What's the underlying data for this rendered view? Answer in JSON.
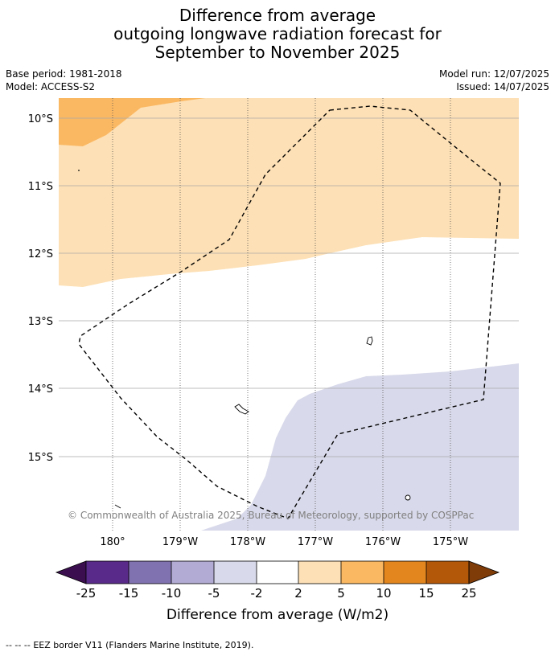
{
  "title": {
    "line1": "Difference from average",
    "line2": "outgoing longwave radiation forecast for",
    "line3": "September to November 2025"
  },
  "meta": {
    "base_period": "Base period: 1981-2018",
    "model": "Model: ACCESS-S2",
    "model_run": "Model run: 12/07/2025",
    "issued": "Issued: 14/07/2025"
  },
  "map": {
    "lat_labels": [
      "10°S",
      "11°S",
      "12°S",
      "13°S",
      "14°S",
      "15°S"
    ],
    "lon_labels": [
      "180°",
      "179°W",
      "178°W",
      "177°W",
      "176°W",
      "175°W"
    ],
    "credit": "© Commonwealth of Australia 2025, Bureau of Meteorology, supported by COSPPac"
  },
  "colorbar": {
    "ticks": [
      "-25",
      "-15",
      "-10",
      "-5",
      "-2",
      "2",
      "5",
      "10",
      "15",
      "25"
    ],
    "colors": {
      "under": "#3b0f4f",
      "b1": "#5a2a8a",
      "b2": "#8072b0",
      "b3": "#b2acd4",
      "b4": "#d8d9ea",
      "b5": "#ffffff",
      "b6": "#fde0b5",
      "b7": "#fbb862",
      "b8": "#e3861e",
      "b9": "#b35808",
      "over": "#7f3b08"
    },
    "label": "Difference from average (W/m2)"
  },
  "footer": {
    "legend_symbol": "--  --  --",
    "legend_text": "EEZ border V11 (Flanders Marine Institute, 2019)."
  }
}
